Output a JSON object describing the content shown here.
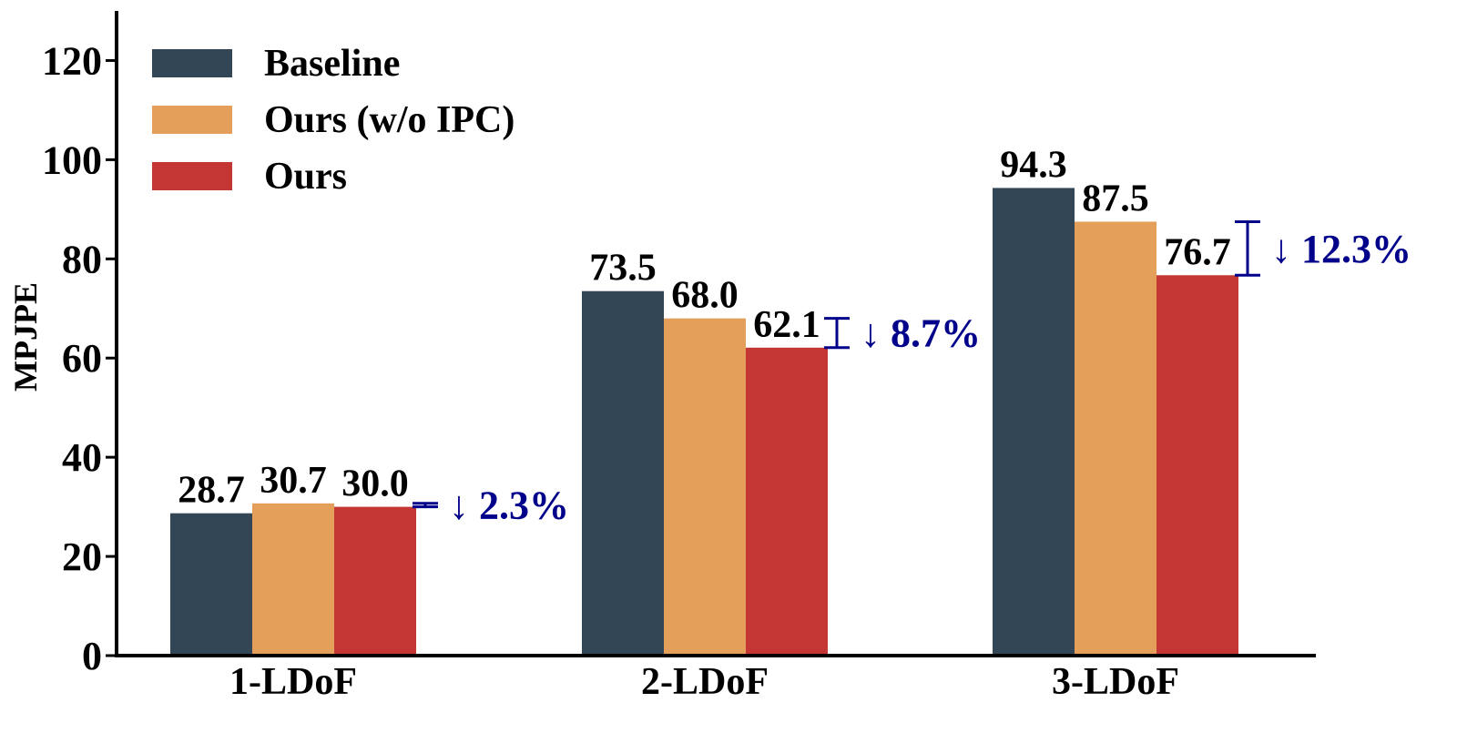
{
  "chart_data": {
    "type": "bar",
    "title": "",
    "xlabel": "",
    "ylabel": "MPJPE",
    "ylim": [
      0,
      130
    ],
    "yticks": [
      0,
      20,
      40,
      60,
      80,
      100,
      120
    ],
    "grid": false,
    "legend_position": "top-left",
    "categories": [
      "1-LDoF",
      "2-LDoF",
      "3-LDoF"
    ],
    "series": [
      {
        "name": "Baseline",
        "values": [
          28.7,
          73.5,
          94.3
        ],
        "labels": [
          "28.7",
          "73.5",
          "94.3"
        ],
        "color": "#324655"
      },
      {
        "name": "Ours (w/o IPC)",
        "values": [
          30.7,
          68.0,
          87.5
        ],
        "labels": [
          "30.7",
          "68.0",
          "87.5"
        ],
        "color": "#e4a05b"
      },
      {
        "name": "Ours",
        "values": [
          30.0,
          62.1,
          76.7
        ],
        "labels": [
          "30.0",
          "62.1",
          "76.7"
        ],
        "color": "#c43633"
      }
    ],
    "annotations": [
      {
        "category": "1-LDoF",
        "from": 30.7,
        "to": 30.0,
        "text": "↓ 2.3%"
      },
      {
        "category": "2-LDoF",
        "from": 68.0,
        "to": 62.1,
        "text": "↓ 8.7%"
      },
      {
        "category": "3-LDoF",
        "from": 87.5,
        "to": 76.7,
        "text": "↓ 12.3%"
      }
    ],
    "annotation_color": "#00008b"
  }
}
